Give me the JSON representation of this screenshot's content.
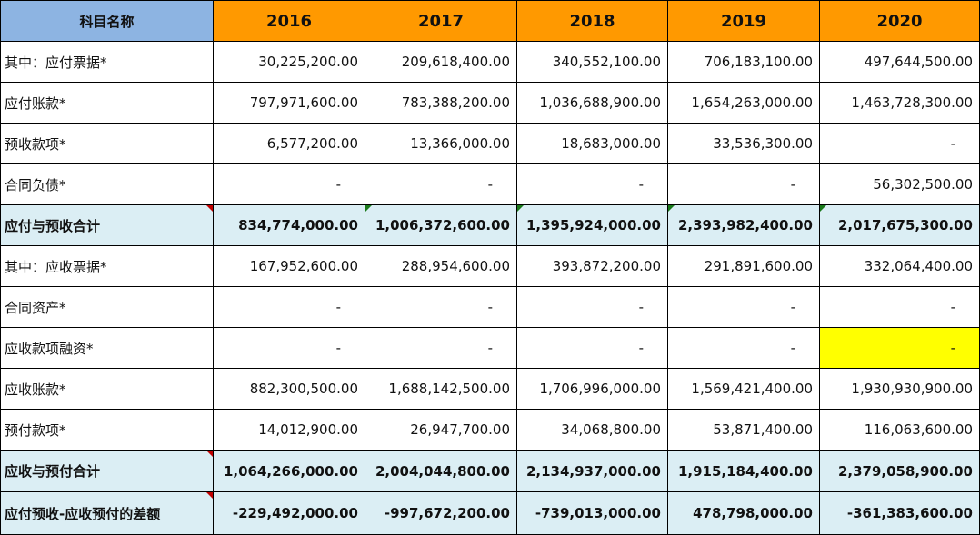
{
  "header": {
    "label": "科目名称",
    "years": [
      "2016",
      "2017",
      "2018",
      "2019",
      "2020"
    ]
  },
  "rows": [
    {
      "label": "其中：应付票据*",
      "values": [
        "30,225,200.00",
        "209,618,400.00",
        "340,552,100.00",
        "706,183,100.00",
        "497,644,500.00"
      ]
    },
    {
      "label": "应付账款*",
      "values": [
        "797,971,600.00",
        "783,388,200.00",
        "1,036,688,900.00",
        "1,654,263,000.00",
        "1,463,728,300.00"
      ]
    },
    {
      "label": "预收款项*",
      "values": [
        "6,577,200.00",
        "13,366,000.00",
        "18,683,000.00",
        "33,536,300.00",
        "-"
      ]
    },
    {
      "label": "合同负债*",
      "values": [
        "-",
        "-",
        "-",
        "-",
        "56,302,500.00"
      ]
    },
    {
      "label": "应付与预收合计",
      "values": [
        "834,774,000.00",
        "1,006,372,600.00",
        "1,395,924,000.00",
        "2,393,982,400.00",
        "2,017,675,300.00"
      ]
    },
    {
      "label": "其中：应收票据*",
      "values": [
        "167,952,600.00",
        "288,954,600.00",
        "393,872,200.00",
        "291,891,600.00",
        "332,064,400.00"
      ]
    },
    {
      "label": "合同资产*",
      "values": [
        "-",
        "-",
        "-",
        "-",
        "-"
      ]
    },
    {
      "label": "应收款项融资*",
      "values": [
        "-",
        "-",
        "-",
        "-",
        "-"
      ]
    },
    {
      "label": "应收账款*",
      "values": [
        "882,300,500.00",
        "1,688,142,500.00",
        "1,706,996,000.00",
        "1,569,421,400.00",
        "1,930,930,900.00"
      ]
    },
    {
      "label": "预付款项*",
      "values": [
        "14,012,900.00",
        "26,947,700.00",
        "34,068,800.00",
        "53,871,400.00",
        "116,063,600.00"
      ]
    },
    {
      "label": "应收与预付合计",
      "values": [
        "1,064,266,000.00",
        "2,004,044,800.00",
        "2,134,937,000.00",
        "1,915,184,400.00",
        "2,379,058,900.00"
      ]
    },
    {
      "label": "应付预收-应收预付的差额",
      "values": [
        "-229,492,000.00",
        "-997,672,200.00",
        "-739,013,000.00",
        "478,798,000.00",
        "-361,383,600.00"
      ]
    }
  ],
  "colors": {
    "header_label_bg": "#8db4e2",
    "header_year_bg": "#ff9900",
    "total_row_bg": "#dbeef4",
    "highlight_cell_bg": "#ffff00"
  }
}
